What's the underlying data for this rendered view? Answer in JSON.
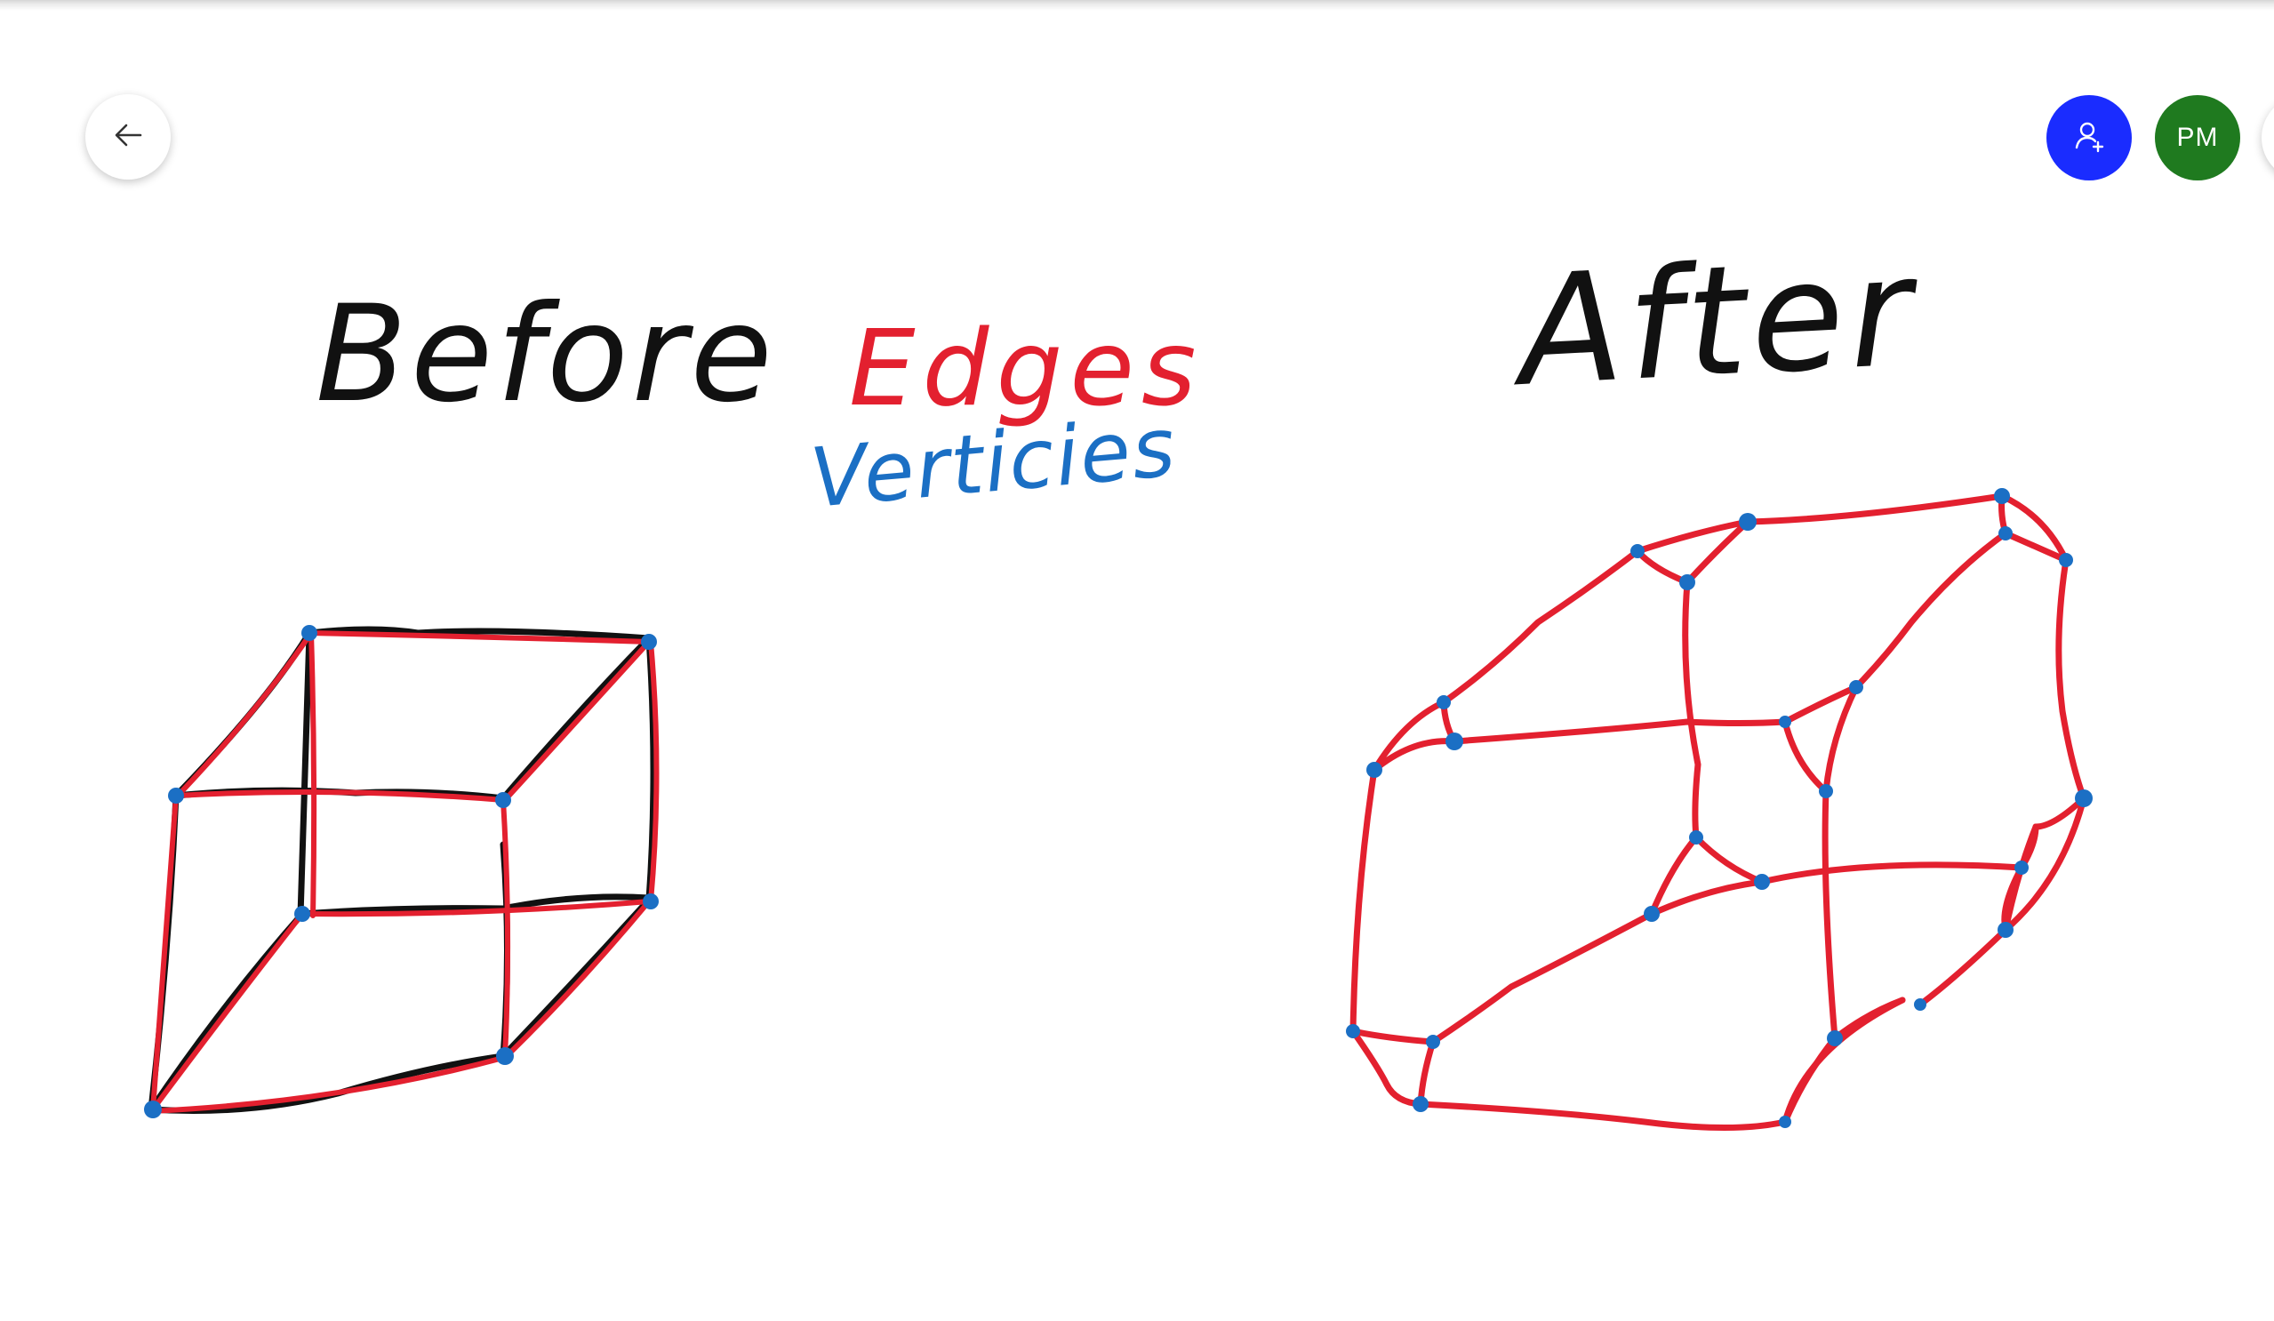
{
  "toolbar": {
    "back_icon": "arrow-left-icon",
    "share_icon": "add-person-icon",
    "avatar_initials": "PM",
    "share_color": "#1a2cff",
    "avatar_color": "#1f7a1f"
  },
  "whiteboard": {
    "before_label": "Before",
    "after_label": "After",
    "legend_edges": "Edges",
    "legend_vertices": "Verticies"
  },
  "colors": {
    "ink_black": "#111111",
    "edge_red": "#e3202f",
    "vertex_blue": "#1b6fc4"
  }
}
